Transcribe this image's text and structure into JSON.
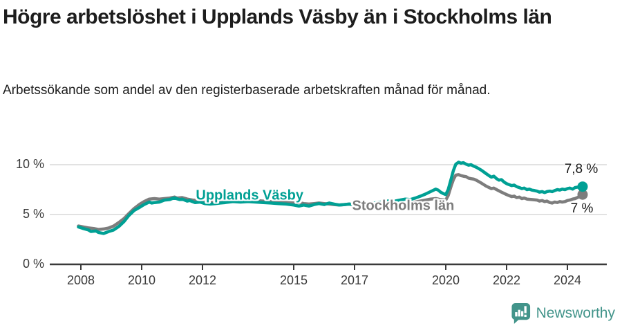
{
  "chart_data": {
    "type": "line",
    "title": "Högre arbetslöshet i Upplands Väsby än i Stockholms län",
    "subtitle": "Arbetssökande som andel av den registerbaserade arbetskraften månad för månad.",
    "xlabel": "",
    "ylabel": "",
    "xlim": [
      2007.9,
      2025.3
    ],
    "ylim": [
      0,
      10.5
    ],
    "grid": "horizontal",
    "legend_position": "inline-labels-on-lines",
    "x_ticks": [
      2008,
      2010,
      2012,
      2015,
      2017,
      2020,
      2022,
      2024
    ],
    "y_ticks": [
      {
        "value": 0,
        "label": "0 %"
      },
      {
        "value": 5,
        "label": "5 %"
      },
      {
        "value": 10,
        "label": "10 %"
      }
    ],
    "series": [
      {
        "name": "Stockholms län",
        "color": "#7d7d7d",
        "end_label": "7 %",
        "end_label_offset": {
          "dx": -1,
          "dy": 21
        },
        "label_anchor": {
          "year": 2018.6,
          "value": 5.8
        },
        "points": [
          [
            2007.92,
            3.85
          ],
          [
            2008.08,
            3.75
          ],
          [
            2008.25,
            3.65
          ],
          [
            2008.42,
            3.6
          ],
          [
            2008.58,
            3.5
          ],
          [
            2008.75,
            3.55
          ],
          [
            2008.92,
            3.65
          ],
          [
            2009.08,
            3.85
          ],
          [
            2009.25,
            4.2
          ],
          [
            2009.42,
            4.6
          ],
          [
            2009.58,
            5.1
          ],
          [
            2009.75,
            5.6
          ],
          [
            2009.92,
            6.0
          ],
          [
            2010.08,
            6.3
          ],
          [
            2010.25,
            6.55
          ],
          [
            2010.42,
            6.6
          ],
          [
            2010.58,
            6.55
          ],
          [
            2010.75,
            6.6
          ],
          [
            2010.92,
            6.65
          ],
          [
            2011.08,
            6.75
          ],
          [
            2011.17,
            6.65
          ],
          [
            2011.33,
            6.7
          ],
          [
            2011.5,
            6.55
          ],
          [
            2011.67,
            6.45
          ],
          [
            2011.83,
            6.4
          ],
          [
            2012.0,
            6.35
          ],
          [
            2012.25,
            6.3
          ],
          [
            2012.5,
            6.35
          ],
          [
            2012.75,
            6.4
          ],
          [
            2013.0,
            6.45
          ],
          [
            2013.25,
            6.4
          ],
          [
            2013.5,
            6.45
          ],
          [
            2013.75,
            6.4
          ],
          [
            2014.0,
            6.35
          ],
          [
            2014.25,
            6.3
          ],
          [
            2014.5,
            6.25
          ],
          [
            2014.75,
            6.2
          ],
          [
            2015.0,
            6.15
          ],
          [
            2015.17,
            6.2
          ],
          [
            2015.33,
            6.1
          ],
          [
            2015.5,
            6.05
          ],
          [
            2015.67,
            6.1
          ],
          [
            2015.83,
            6.15
          ],
          [
            2016.0,
            6.1
          ],
          [
            2016.17,
            6.05
          ],
          [
            2016.33,
            6.0
          ],
          [
            2016.5,
            5.95
          ],
          [
            2016.67,
            6.0
          ],
          [
            2016.83,
            6.05
          ],
          [
            2017.0,
            5.95
          ],
          [
            2017.25,
            5.9
          ],
          [
            2017.5,
            5.95
          ],
          [
            2017.75,
            5.9
          ],
          [
            2018.0,
            5.95
          ],
          [
            2018.25,
            6.0
          ],
          [
            2018.5,
            6.05
          ],
          [
            2018.75,
            6.15
          ],
          [
            2019.0,
            6.25
          ],
          [
            2019.25,
            6.4
          ],
          [
            2019.5,
            6.55
          ],
          [
            2019.67,
            6.6
          ],
          [
            2019.83,
            6.5
          ],
          [
            2020.0,
            6.45
          ],
          [
            2020.08,
            6.9
          ],
          [
            2020.17,
            7.8
          ],
          [
            2020.25,
            8.5
          ],
          [
            2020.33,
            8.95
          ],
          [
            2020.42,
            9.0
          ],
          [
            2020.5,
            8.9
          ],
          [
            2020.58,
            8.85
          ],
          [
            2020.67,
            8.8
          ],
          [
            2020.75,
            8.65
          ],
          [
            2020.83,
            8.6
          ],
          [
            2020.92,
            8.55
          ],
          [
            2021.0,
            8.45
          ],
          [
            2021.17,
            8.15
          ],
          [
            2021.33,
            7.85
          ],
          [
            2021.5,
            7.6
          ],
          [
            2021.58,
            7.65
          ],
          [
            2021.67,
            7.5
          ],
          [
            2021.83,
            7.25
          ],
          [
            2022.0,
            7.0
          ],
          [
            2022.08,
            6.9
          ],
          [
            2022.17,
            6.8
          ],
          [
            2022.25,
            6.85
          ],
          [
            2022.33,
            6.7
          ],
          [
            2022.42,
            6.75
          ],
          [
            2022.5,
            6.6
          ],
          [
            2022.58,
            6.65
          ],
          [
            2022.67,
            6.55
          ],
          [
            2022.83,
            6.5
          ],
          [
            2023.0,
            6.45
          ],
          [
            2023.08,
            6.35
          ],
          [
            2023.17,
            6.4
          ],
          [
            2023.25,
            6.3
          ],
          [
            2023.33,
            6.35
          ],
          [
            2023.42,
            6.2
          ],
          [
            2023.5,
            6.15
          ],
          [
            2023.58,
            6.25
          ],
          [
            2023.67,
            6.2
          ],
          [
            2023.75,
            6.3
          ],
          [
            2023.83,
            6.25
          ],
          [
            2023.92,
            6.3
          ],
          [
            2024.0,
            6.4
          ],
          [
            2024.08,
            6.45
          ],
          [
            2024.17,
            6.55
          ],
          [
            2024.25,
            6.6
          ],
          [
            2024.33,
            6.7
          ],
          [
            2024.42,
            6.85
          ],
          [
            2024.5,
            7.0
          ]
        ]
      },
      {
        "name": "Upplands Väsby",
        "color": "#00a094",
        "end_label": "7,8 %",
        "end_label_offset": {
          "dx": -2,
          "dy": -25
        },
        "label_anchor": {
          "year": 2013.55,
          "value": 6.85
        },
        "points": [
          [
            2007.92,
            3.75
          ],
          [
            2008.08,
            3.6
          ],
          [
            2008.25,
            3.45
          ],
          [
            2008.33,
            3.3
          ],
          [
            2008.5,
            3.35
          ],
          [
            2008.58,
            3.2
          ],
          [
            2008.75,
            3.1
          ],
          [
            2008.92,
            3.3
          ],
          [
            2009.08,
            3.45
          ],
          [
            2009.25,
            3.8
          ],
          [
            2009.42,
            4.3
          ],
          [
            2009.58,
            4.9
          ],
          [
            2009.75,
            5.4
          ],
          [
            2009.92,
            5.7
          ],
          [
            2010.08,
            6.0
          ],
          [
            2010.25,
            6.25
          ],
          [
            2010.33,
            6.15
          ],
          [
            2010.42,
            6.2
          ],
          [
            2010.58,
            6.25
          ],
          [
            2010.75,
            6.45
          ],
          [
            2010.92,
            6.5
          ],
          [
            2011.0,
            6.6
          ],
          [
            2011.08,
            6.65
          ],
          [
            2011.25,
            6.5
          ],
          [
            2011.33,
            6.55
          ],
          [
            2011.5,
            6.35
          ],
          [
            2011.58,
            6.4
          ],
          [
            2011.75,
            6.2
          ],
          [
            2011.92,
            6.25
          ],
          [
            2012.08,
            6.1
          ],
          [
            2012.25,
            6.05
          ],
          [
            2012.42,
            6.1
          ],
          [
            2012.58,
            6.15
          ],
          [
            2012.75,
            6.2
          ],
          [
            2013.0,
            6.3
          ],
          [
            2013.25,
            6.25
          ],
          [
            2013.5,
            6.3
          ],
          [
            2013.75,
            6.25
          ],
          [
            2014.0,
            6.2
          ],
          [
            2014.25,
            6.15
          ],
          [
            2014.5,
            6.1
          ],
          [
            2014.75,
            6.05
          ],
          [
            2015.0,
            5.95
          ],
          [
            2015.17,
            5.85
          ],
          [
            2015.33,
            5.95
          ],
          [
            2015.5,
            5.85
          ],
          [
            2015.67,
            6.0
          ],
          [
            2015.83,
            6.1
          ],
          [
            2016.0,
            6.0
          ],
          [
            2016.17,
            6.15
          ],
          [
            2016.33,
            6.05
          ],
          [
            2016.5,
            5.95
          ],
          [
            2016.67,
            6.0
          ],
          [
            2016.83,
            6.05
          ],
          [
            2017.0,
            6.0
          ],
          [
            2017.25,
            6.05
          ],
          [
            2017.5,
            6.1
          ],
          [
            2017.75,
            6.2
          ],
          [
            2018.0,
            6.3
          ],
          [
            2018.17,
            6.4
          ],
          [
            2018.33,
            6.35
          ],
          [
            2018.5,
            6.45
          ],
          [
            2018.67,
            6.55
          ],
          [
            2018.83,
            6.5
          ],
          [
            2019.0,
            6.65
          ],
          [
            2019.17,
            6.85
          ],
          [
            2019.33,
            7.05
          ],
          [
            2019.5,
            7.3
          ],
          [
            2019.67,
            7.55
          ],
          [
            2019.75,
            7.45
          ],
          [
            2019.83,
            7.25
          ],
          [
            2019.92,
            7.1
          ],
          [
            2020.0,
            7.0
          ],
          [
            2020.08,
            7.5
          ],
          [
            2020.17,
            8.5
          ],
          [
            2020.25,
            9.4
          ],
          [
            2020.33,
            10.05
          ],
          [
            2020.42,
            10.25
          ],
          [
            2020.5,
            10.15
          ],
          [
            2020.58,
            10.2
          ],
          [
            2020.67,
            10.05
          ],
          [
            2020.75,
            9.95
          ],
          [
            2020.83,
            10.0
          ],
          [
            2020.92,
            9.85
          ],
          [
            2021.0,
            9.75
          ],
          [
            2021.17,
            9.45
          ],
          [
            2021.33,
            9.1
          ],
          [
            2021.42,
            8.9
          ],
          [
            2021.5,
            8.75
          ],
          [
            2021.58,
            8.85
          ],
          [
            2021.67,
            8.6
          ],
          [
            2021.75,
            8.45
          ],
          [
            2021.83,
            8.5
          ],
          [
            2021.92,
            8.25
          ],
          [
            2022.0,
            8.1
          ],
          [
            2022.08,
            8.0
          ],
          [
            2022.17,
            7.9
          ],
          [
            2022.25,
            7.95
          ],
          [
            2022.33,
            7.8
          ],
          [
            2022.42,
            7.7
          ],
          [
            2022.5,
            7.6
          ],
          [
            2022.58,
            7.65
          ],
          [
            2022.67,
            7.5
          ],
          [
            2022.75,
            7.55
          ],
          [
            2022.83,
            7.45
          ],
          [
            2022.92,
            7.4
          ],
          [
            2023.0,
            7.35
          ],
          [
            2023.08,
            7.25
          ],
          [
            2023.17,
            7.3
          ],
          [
            2023.25,
            7.2
          ],
          [
            2023.33,
            7.3
          ],
          [
            2023.42,
            7.35
          ],
          [
            2023.5,
            7.3
          ],
          [
            2023.58,
            7.4
          ],
          [
            2023.67,
            7.5
          ],
          [
            2023.75,
            7.45
          ],
          [
            2023.83,
            7.55
          ],
          [
            2023.92,
            7.5
          ],
          [
            2024.0,
            7.6
          ],
          [
            2024.08,
            7.65
          ],
          [
            2024.17,
            7.55
          ],
          [
            2024.25,
            7.7
          ],
          [
            2024.33,
            7.75
          ],
          [
            2024.42,
            7.7
          ],
          [
            2024.5,
            7.8
          ]
        ]
      }
    ]
  },
  "branding": {
    "name": "Newsworthy",
    "color": "#42948a",
    "icon": "newsworthy-chart-bubble-icon"
  }
}
